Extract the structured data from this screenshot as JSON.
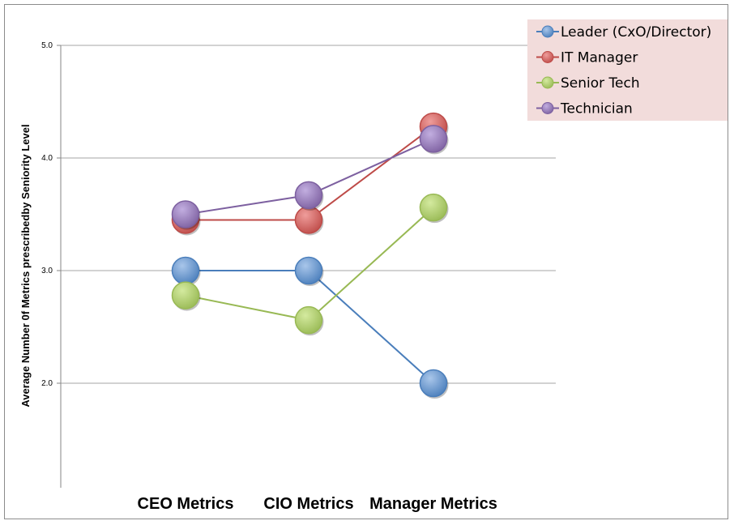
{
  "chart_data": {
    "type": "line",
    "categories": [
      "CEO Metrics",
      "CIO Metrics",
      "Manager Metrics"
    ],
    "ylabel": "Average Number 0f Metrics prescribedby Seniority Level",
    "xlabel": "",
    "ylim": [
      1.0,
      5.0
    ],
    "yticks": [
      2.0,
      3.0,
      4.0,
      5.0
    ],
    "ytick_labels": [
      "2.0",
      "3.0",
      "4.0",
      "5.0"
    ],
    "grid": true,
    "legend_position": "top-right",
    "series": [
      {
        "name": "Leader (CxO/Director)",
        "values": [
          3.0,
          3.0,
          2.0
        ],
        "color": "#4a7ebb",
        "light": "#a9c6ea"
      },
      {
        "name": "IT Manager",
        "values": [
          3.45,
          3.45,
          4.28
        ],
        "color": "#be4b48",
        "light": "#ef9d9b"
      },
      {
        "name": "Senior Tech",
        "values": [
          2.78,
          2.56,
          3.56
        ],
        "color": "#98b954",
        "light": "#d4ea9f"
      },
      {
        "name": "Technician",
        "values": [
          3.5,
          3.67,
          4.17
        ],
        "color": "#7d60a0",
        "light": "#c2aee0"
      }
    ]
  },
  "colors": {
    "legend_bg": "#f2dcdb",
    "grid": "#a6a6a6",
    "axis": "#868686"
  }
}
